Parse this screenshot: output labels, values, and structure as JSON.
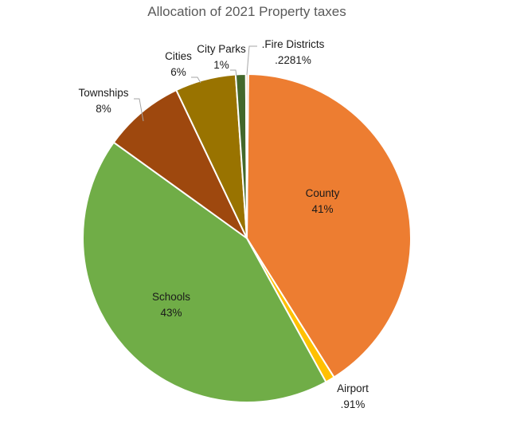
{
  "chart_data": {
    "type": "pie",
    "title": "Allocation of 2021 Property taxes",
    "slices": [
      {
        "label": "County",
        "value_text": "41%",
        "value": 41.0,
        "color": "#ED7D31"
      },
      {
        "label": "Airport",
        "value_text": ".91%",
        "value": 0.91,
        "color": "#FFC000"
      },
      {
        "label": "Schools",
        "value_text": "43%",
        "value": 43.0,
        "color": "#70AD47"
      },
      {
        "label": "Townships",
        "value_text": "8%",
        "value": 8.0,
        "color": "#9E480E"
      },
      {
        "label": "Cities",
        "value_text": "6%",
        "value": 6.0,
        "color": "#997300"
      },
      {
        "label": "City Parks",
        "value_text": "1%",
        "value": 1.0,
        "color": "#43682B"
      },
      {
        "label": ".Fire Districts",
        "value_text": ".2281%",
        "value": 0.2281,
        "color": "#F8CBAD"
      }
    ],
    "legend": "none"
  }
}
